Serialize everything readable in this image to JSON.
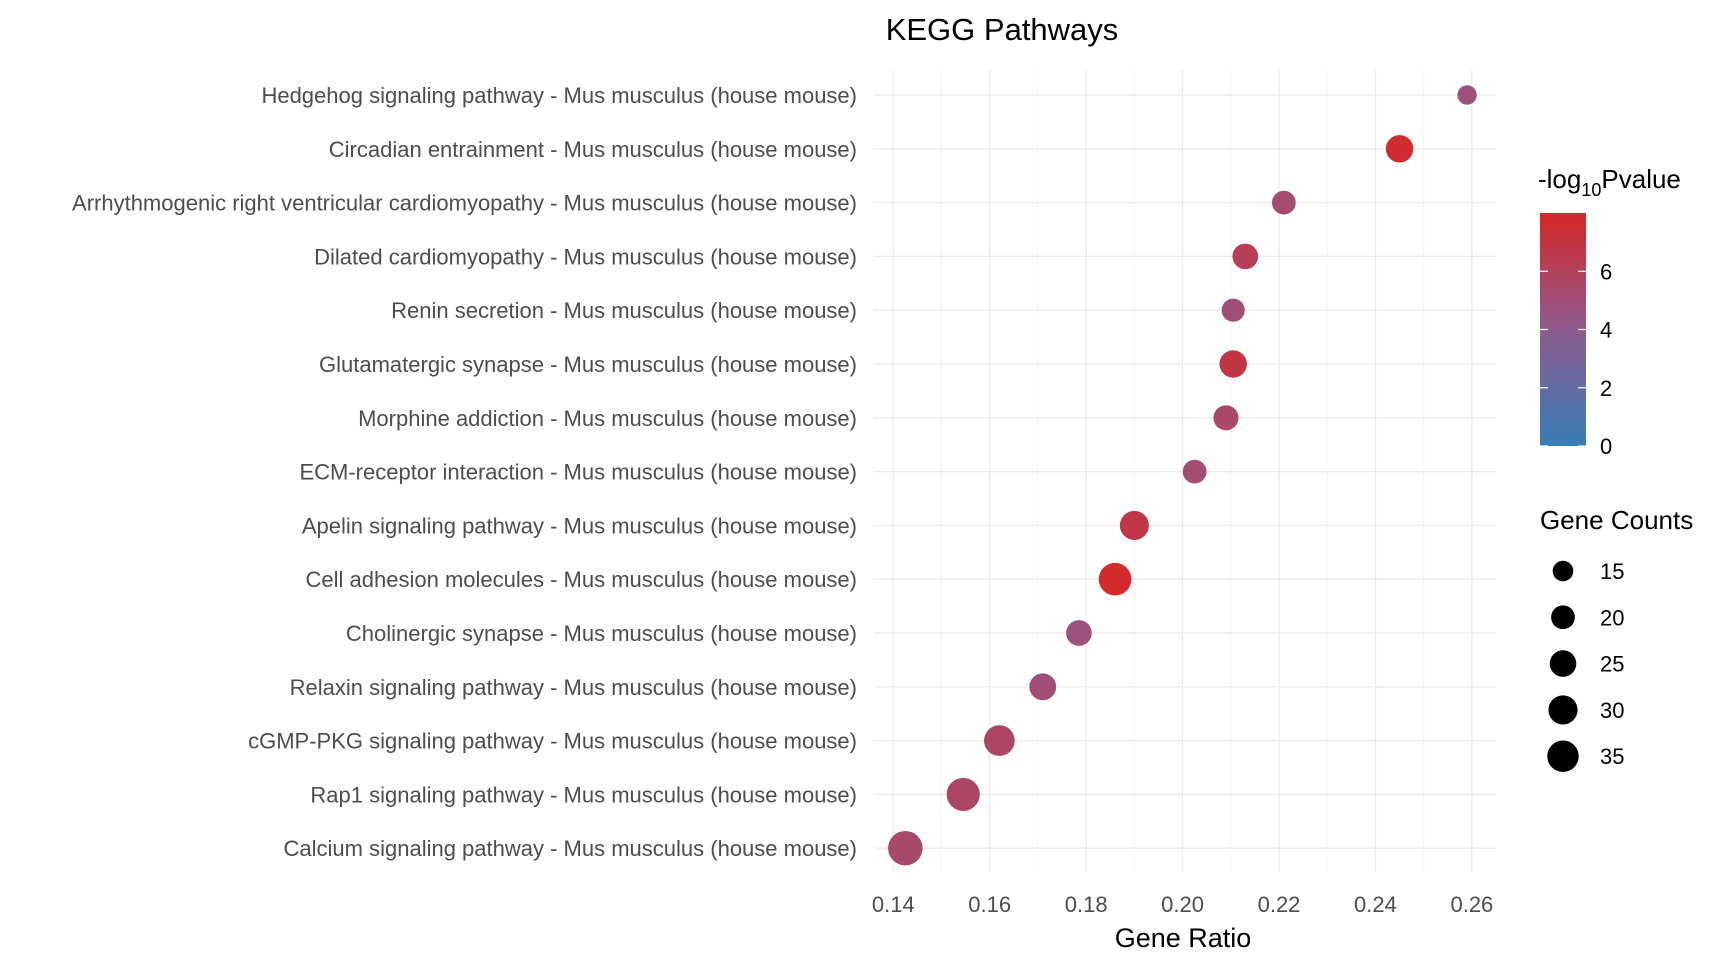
{
  "chart_data": {
    "type": "scatter",
    "title": "KEGG Pathways",
    "xlabel": "Gene Ratio",
    "ylabel": "",
    "xlim": [
      0.136,
      0.265
    ],
    "x_ticks": [
      0.14,
      0.16,
      0.18,
      0.2,
      0.22,
      0.24,
      0.26
    ],
    "x_tick_labels": [
      "0.14",
      "0.16",
      "0.18",
      "0.20",
      "0.22",
      "0.24",
      "0.26"
    ],
    "grid": true,
    "colors": {
      "low": "#377eb8",
      "mid": "#8e5b8e",
      "high": "#d62728"
    },
    "color_legend": {
      "title_prefix": "-log",
      "title_sub": "10",
      "title_suffix": "Pvalue",
      "range": [
        0,
        8
      ],
      "ticks": [
        0,
        2,
        4,
        6
      ],
      "tick_labels": [
        "0",
        "2",
        "4",
        "6"
      ],
      "placement": "right"
    },
    "size_legend": {
      "title": "Gene Counts",
      "values": [
        15,
        20,
        25,
        30,
        35
      ],
      "labels": [
        "15",
        "20",
        "25",
        "30",
        "35"
      ],
      "placement": "right"
    },
    "points": [
      {
        "label": "Hedgehog signaling pathway - Mus musculus (house mouse)",
        "x": 0.259,
        "count": 12,
        "neglog10p": 4.7
      },
      {
        "label": "Circadian entrainment - Mus musculus (house mouse)",
        "x": 0.245,
        "count": 24,
        "neglog10p": 7.7
      },
      {
        "label": "Arrhythmogenic right ventricular cardiomyopathy - Mus musculus (house mouse)",
        "x": 0.221,
        "count": 18,
        "neglog10p": 5.2
      },
      {
        "label": "Dilated cardiomyopathy - Mus musculus (house mouse)",
        "x": 0.213,
        "count": 21,
        "neglog10p": 6.2
      },
      {
        "label": "Renin secretion - Mus musculus (house mouse)",
        "x": 0.2105,
        "count": 17,
        "neglog10p": 5.0
      },
      {
        "label": "Glutamatergic synapse - Mus musculus (house mouse)",
        "x": 0.2105,
        "count": 24,
        "neglog10p": 6.9
      },
      {
        "label": "Morphine addiction - Mus musculus (house mouse)",
        "x": 0.209,
        "count": 20,
        "neglog10p": 5.5
      },
      {
        "label": "ECM-receptor interaction - Mus musculus (house mouse)",
        "x": 0.2025,
        "count": 18,
        "neglog10p": 5.1
      },
      {
        "label": "Apelin signaling pathway - Mus musculus (house mouse)",
        "x": 0.19,
        "count": 27,
        "neglog10p": 6.8
      },
      {
        "label": "Cell adhesion molecules - Mus musculus (house mouse)",
        "x": 0.186,
        "count": 34,
        "neglog10p": 7.8
      },
      {
        "label": "Cholinergic synapse - Mus musculus (house mouse)",
        "x": 0.1785,
        "count": 21,
        "neglog10p": 4.8
      },
      {
        "label": "Relaxin signaling pathway - Mus musculus (house mouse)",
        "x": 0.171,
        "count": 23,
        "neglog10p": 5.0
      },
      {
        "label": "cGMP-PKG signaling pathway - Mus musculus (house mouse)",
        "x": 0.162,
        "count": 30,
        "neglog10p": 5.6
      },
      {
        "label": "Rap1 signaling pathway - Mus musculus (house mouse)",
        "x": 0.1545,
        "count": 35,
        "neglog10p": 5.6
      },
      {
        "label": "Calcium signaling pathway - Mus musculus (house mouse)",
        "x": 0.1425,
        "count": 38,
        "neglog10p": 5.4
      }
    ]
  }
}
